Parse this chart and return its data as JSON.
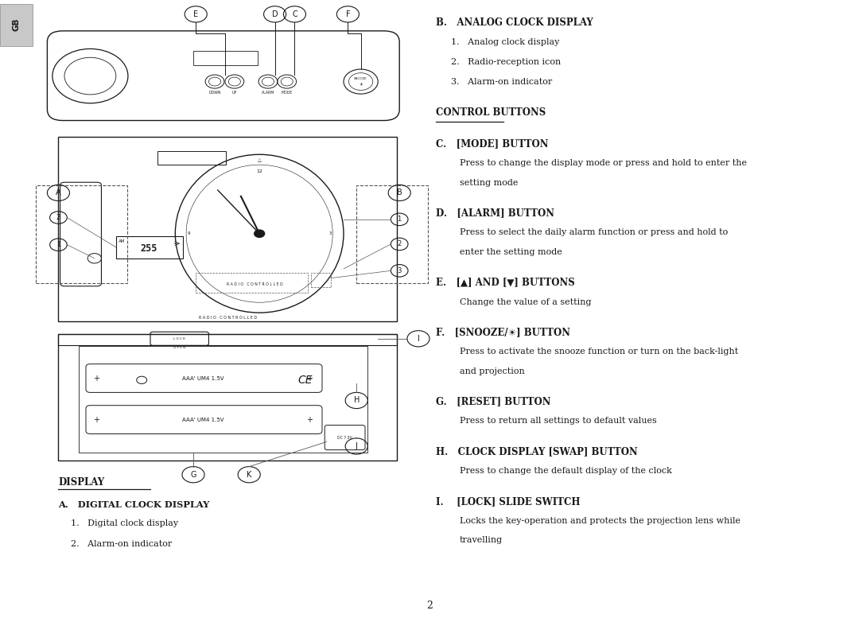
{
  "bg_color": "#ffffff",
  "text_color": "#1a1a1a",
  "page_width": 10.8,
  "page_height": 7.77,
  "gb_label": "GB",
  "display_label": "DISPLAY",
  "display_a_heading": "A.   DIGITAL CLOCK DISPLAY",
  "display_a_items": [
    "1.   Digital clock display",
    "2.   Alarm-on indicator"
  ],
  "bottom_text": "2",
  "right_sections": [
    {
      "heading": "B.   ANALOG CLOCK DISPLAY",
      "underline": false,
      "items": [
        "1.   Analog clock display",
        "2.   Radio-reception icon",
        "3.   Alarm-on indicator"
      ],
      "body": null
    },
    {
      "heading": "CONTROL BUTTONS",
      "underline": true,
      "items": [],
      "body": null
    },
    {
      "heading": "C.   [MODE] BUTTON",
      "underline": false,
      "items": [],
      "body": "Press to change the display mode or press and hold to enter the\nsetting mode"
    },
    {
      "heading": "D.   [ALARM] BUTTON",
      "underline": false,
      "items": [],
      "body": "Press to select the daily alarm function or press and hold to\nenter the setting mode"
    },
    {
      "heading": "E.   [▲] AND [▼] BUTTONS",
      "underline": false,
      "items": [],
      "body": "Change the value of a setting"
    },
    {
      "heading": "F.   [SNOOZE/☀] BUTTON",
      "underline": false,
      "items": [],
      "body": "Press to activate the snooze function or turn on the back-light\nand projection"
    },
    {
      "heading": "G.   [RESET] BUTTON",
      "underline": false,
      "items": [],
      "body": "Press to return all settings to default values"
    },
    {
      "heading": "H.   CLOCK DISPLAY [SWAP] BUTTON",
      "underline": false,
      "items": [],
      "body": "Press to change the default display of the clock"
    },
    {
      "heading": "I.    [LOCK] SLIDE SWITCH",
      "underline": false,
      "items": [],
      "body": "Locks the key-operation and protects the projection lens while\ntravelling"
    }
  ]
}
